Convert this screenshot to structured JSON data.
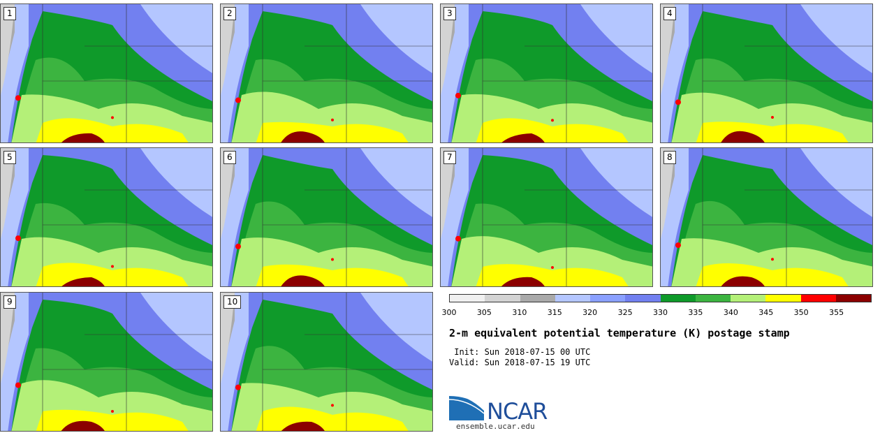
{
  "panels": [
    "1",
    "2",
    "3",
    "4",
    "5",
    "6",
    "7",
    "8",
    "9",
    "10"
  ],
  "colorbar": {
    "colors": [
      "#f0f0f0",
      "#d3d3d3",
      "#a9a9a9",
      "#b4c6ff",
      "#8aa0ff",
      "#7280f0",
      "#0f9a2a",
      "#3cb440",
      "#b4f078",
      "#ffff00",
      "#ff0000",
      "#8b0000"
    ],
    "ticks": [
      "300",
      "305",
      "310",
      "315",
      "320",
      "325",
      "330",
      "335",
      "340",
      "345",
      "350",
      "355"
    ]
  },
  "title": "2-m equivalent potential temperature (K) postage stamp",
  "init_line": " Init: Sun 2018-07-15 00 UTC",
  "valid_line": "Valid: Sun 2018-07-15 19 UTC",
  "logo": {
    "name": "NCAR",
    "site": "ensemble.ucar.edu"
  }
}
